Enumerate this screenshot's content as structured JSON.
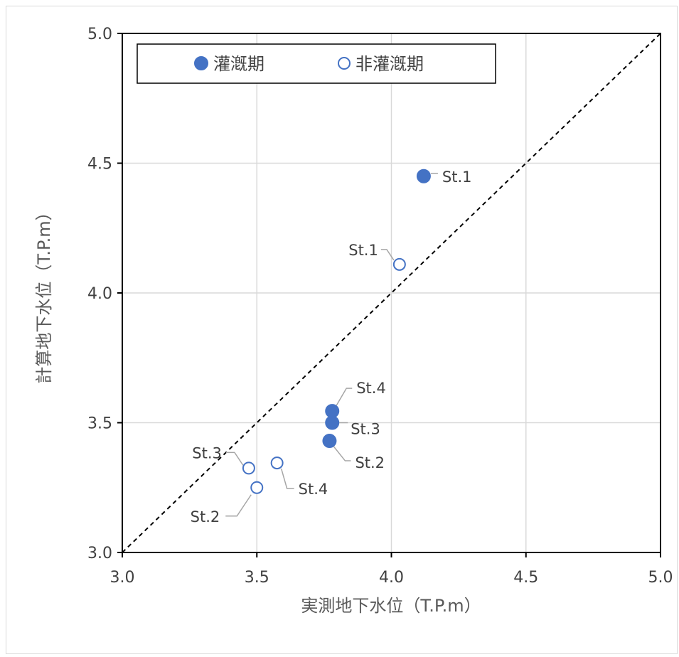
{
  "chart_data": {
    "type": "scatter",
    "title": "",
    "xlabel": "実測地下水位（T.P.m）",
    "ylabel": "計算地下水位（T.P.m）",
    "xlim": [
      3.0,
      5.0
    ],
    "ylim": [
      3.0,
      5.0
    ],
    "x_ticks": [
      "3.0",
      "3.5",
      "4.0",
      "4.5",
      "5.0"
    ],
    "y_ticks": [
      "3.0",
      "3.5",
      "4.0",
      "4.5",
      "5.0"
    ],
    "grid": true,
    "legend_position": "top",
    "reference_line": "y = x (dashed)",
    "series": [
      {
        "name": "灌漑期",
        "marker": "filled-circle",
        "color": "#4472c4",
        "points": [
          {
            "label": "St.1",
            "x": 4.12,
            "y": 4.45
          },
          {
            "label": "St.2",
            "x": 3.77,
            "y": 3.43
          },
          {
            "label": "St.3",
            "x": 3.78,
            "y": 3.5
          },
          {
            "label": "St.4",
            "x": 3.78,
            "y": 3.545
          }
        ]
      },
      {
        "name": "非灌漑期",
        "marker": "open-circle",
        "color": "#4472c4",
        "points": [
          {
            "label": "St.1",
            "x": 4.03,
            "y": 4.11
          },
          {
            "label": "St.2",
            "x": 3.5,
            "y": 3.25
          },
          {
            "label": "St.3",
            "x": 3.47,
            "y": 3.325
          },
          {
            "label": "St.4",
            "x": 3.575,
            "y": 3.345
          }
        ]
      }
    ]
  }
}
